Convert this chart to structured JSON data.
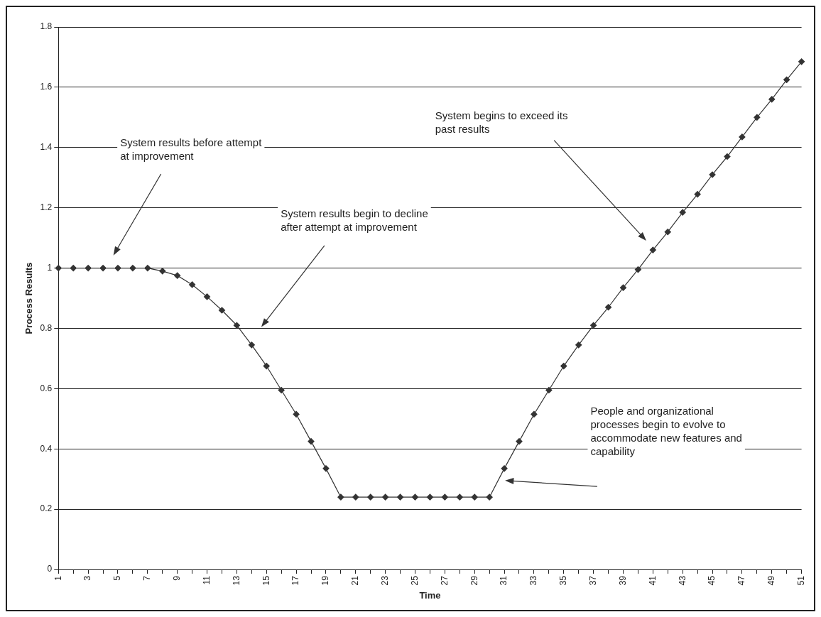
{
  "chart_data": {
    "type": "line",
    "xlabel": "Time",
    "ylabel": "Process Results",
    "categories": [
      "1",
      null,
      "3",
      null,
      "5",
      null,
      "7",
      null,
      "9",
      null,
      "11",
      null,
      "13",
      null,
      "15",
      null,
      "17",
      null,
      "19",
      null,
      "21",
      null,
      "23",
      null,
      "25",
      null,
      "27",
      null,
      "29",
      null,
      "31",
      null,
      "33",
      null,
      "35",
      null,
      "37",
      null,
      "39",
      null,
      "41",
      null,
      "43",
      null,
      "45",
      null,
      "47",
      null,
      "49",
      null,
      "51"
    ],
    "series": [
      {
        "color": "#333333",
        "values": [
          1,
          1,
          1,
          1,
          1,
          1,
          1,
          0.99,
          0.975,
          0.945,
          0.905,
          0.86,
          0.81,
          0.745,
          0.675,
          0.595,
          0.515,
          0.425,
          0.335,
          0.24,
          0.24,
          0.24,
          0.24,
          0.24,
          0.24,
          0.24,
          0.24,
          0.24,
          0.24,
          0.24,
          0.335,
          0.425,
          0.515,
          0.595,
          0.675,
          0.745,
          0.81,
          0.87,
          0.935,
          0.995,
          1.06,
          1.12,
          1.185,
          1.245,
          1.31,
          1.37,
          1.435,
          1.5,
          1.56,
          1.625,
          1.685
        ]
      }
    ],
    "ylim": [
      0,
      1.8
    ],
    "yticks": [
      0,
      0.2,
      0.4,
      0.6,
      0.8,
      1,
      1.2,
      1.4,
      1.6,
      1.8
    ],
    "grid": "y",
    "legend": false,
    "marker": "diamond",
    "line_style": "solid",
    "annotations": [
      "System results before attempt at improvement",
      "System results begin to decline after attempt at improvement",
      "People and organizational processes begin to evolve to accommodate new features and capability",
      "System begins to exceed its past results"
    ]
  }
}
